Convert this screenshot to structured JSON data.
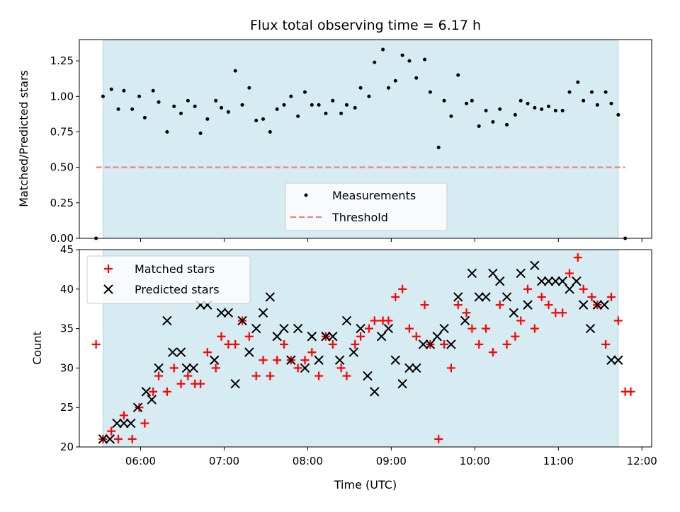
{
  "chart_data": [
    {
      "type": "scatter",
      "title": "Flux total observing time = 6.17 h",
      "ylabel": "Matched/Predicted stars",
      "xlim": [
        "05:16",
        "12:07"
      ],
      "ylim": [
        0,
        1.4
      ],
      "yticks": [
        0.0,
        0.25,
        0.5,
        0.75,
        1.0,
        1.25
      ],
      "ytick_labels": [
        "0.00",
        "0.25",
        "0.50",
        "0.75",
        "1.00",
        "1.25"
      ],
      "shaded_interval": [
        "05:33",
        "11:43"
      ],
      "shade_color": "#add8e6",
      "legend": {
        "location": "lower center",
        "entries": [
          "Measurements",
          "Threshold"
        ]
      },
      "threshold": {
        "name": "Threshold",
        "value": 0.5,
        "x_range": [
          "05:28",
          "11:48"
        ],
        "color": "#f08080",
        "style": "dashed"
      },
      "series": [
        {
          "name": "Measurements",
          "color": "#000000",
          "marker": "point",
          "x": [
            "05:28",
            "05:33",
            "05:39",
            "05:44",
            "05:48",
            "05:54",
            "05:59",
            "06:03",
            "06:09",
            "06:13",
            "06:19",
            "06:24",
            "06:29",
            "06:34",
            "06:39",
            "06:43",
            "06:48",
            "06:54",
            "06:58",
            "07:03",
            "07:08",
            "07:13",
            "07:18",
            "07:23",
            "07:28",
            "07:33",
            "07:38",
            "07:43",
            "07:48",
            "07:53",
            "07:58",
            "08:03",
            "08:08",
            "08:13",
            "08:18",
            "08:24",
            "08:28",
            "08:34",
            "08:38",
            "08:44",
            "08:48",
            "08:54",
            "08:58",
            "09:03",
            "09:08",
            "09:13",
            "09:18",
            "09:24",
            "09:28",
            "09:34",
            "09:38",
            "09:43",
            "09:48",
            "09:54",
            "09:58",
            "10:03",
            "10:08",
            "10:13",
            "10:18",
            "10:23",
            "10:29",
            "10:33",
            "10:38",
            "10:43",
            "10:48",
            "10:53",
            "10:58",
            "11:03",
            "11:08",
            "11:14",
            "11:18",
            "11:24",
            "11:28",
            "11:34",
            "11:38",
            "11:43",
            "11:48"
          ],
          "y": [
            0.0,
            1.0,
            1.05,
            0.91,
            1.04,
            0.91,
            1.0,
            0.85,
            1.04,
            0.96,
            0.75,
            0.93,
            0.88,
            0.97,
            0.93,
            0.74,
            0.84,
            0.97,
            0.92,
            0.89,
            1.18,
            0.94,
            1.06,
            0.83,
            0.84,
            0.75,
            0.91,
            0.94,
            1.0,
            0.86,
            1.03,
            0.94,
            0.94,
            0.88,
            0.97,
            0.88,
            0.94,
            0.92,
            1.06,
            1.0,
            1.24,
            1.33,
            1.06,
            1.11,
            1.29,
            1.25,
            1.13,
            1.26,
            1.03,
            0.64,
            0.97,
            0.86,
            1.15,
            0.95,
            0.97,
            0.79,
            0.9,
            0.82,
            0.91,
            0.8,
            0.87,
            0.97,
            0.95,
            0.92,
            0.91,
            0.93,
            0.9,
            0.9,
            1.03,
            1.1,
            0.97,
            1.03,
            0.94,
            1.03,
            0.95,
            0.87,
            0.0
          ]
        }
      ]
    },
    {
      "type": "scatter",
      "xlabel": "Time (UTC)",
      "ylabel": "Count",
      "xlim": [
        "05:16",
        "12:07"
      ],
      "ylim": [
        20,
        45
      ],
      "xticks": [
        "06:00",
        "07:00",
        "08:00",
        "09:00",
        "10:00",
        "11:00",
        "12:00"
      ],
      "yticks": [
        20,
        25,
        30,
        35,
        40,
        45
      ],
      "shaded_interval": [
        "05:33",
        "11:43"
      ],
      "shade_color": "#add8e6",
      "legend": {
        "location": "upper left",
        "entries": [
          "Matched stars",
          "Predicted stars"
        ]
      },
      "series": [
        {
          "name": "Matched stars",
          "color": "#ff0000",
          "marker": "plus",
          "x": [
            "05:28",
            "05:33",
            "05:39",
            "05:44",
            "05:48",
            "05:54",
            "05:59",
            "06:03",
            "06:09",
            "06:13",
            "06:19",
            "06:24",
            "06:29",
            "06:34",
            "06:39",
            "06:43",
            "06:48",
            "06:54",
            "06:58",
            "07:03",
            "07:08",
            "07:13",
            "07:18",
            "07:23",
            "07:28",
            "07:33",
            "07:38",
            "07:43",
            "07:48",
            "07:53",
            "07:58",
            "08:03",
            "08:08",
            "08:13",
            "08:18",
            "08:24",
            "08:28",
            "08:34",
            "08:38",
            "08:44",
            "08:48",
            "08:54",
            "08:58",
            "09:03",
            "09:08",
            "09:13",
            "09:18",
            "09:24",
            "09:28",
            "09:34",
            "09:38",
            "09:43",
            "09:48",
            "09:54",
            "09:58",
            "10:03",
            "10:08",
            "10:13",
            "10:18",
            "10:23",
            "10:29",
            "10:33",
            "10:38",
            "10:43",
            "10:48",
            "10:53",
            "10:58",
            "11:03",
            "11:08",
            "11:14",
            "11:18",
            "11:24",
            "11:28",
            "11:34",
            "11:38",
            "11:43",
            "11:48"
          ],
          "y": [
            33,
            21,
            22,
            21,
            24,
            21,
            25,
            23,
            27,
            29,
            27,
            30,
            28,
            29,
            28,
            28,
            32,
            30,
            34,
            33,
            33,
            36,
            34,
            29,
            31,
            29,
            31,
            33,
            31,
            30,
            31,
            32,
            29,
            34,
            33,
            30,
            29,
            33,
            34,
            35,
            36,
            36,
            36,
            39,
            40,
            35,
            34,
            38,
            33,
            21,
            33,
            30,
            38,
            37,
            35,
            33,
            35,
            32,
            38,
            33,
            34,
            36,
            40,
            35,
            39,
            38,
            37,
            37,
            42,
            44,
            40,
            39,
            38,
            33,
            39,
            36,
            27
          ],
          "extra_points": [
            {
              "x": "11:52",
              "y": 27
            }
          ]
        },
        {
          "name": "Predicted stars",
          "color": "#000000",
          "marker": "x",
          "x": [
            "05:33",
            "05:38",
            "05:43",
            "05:48",
            "05:53",
            "05:58",
            "06:04",
            "06:08",
            "06:13",
            "06:19",
            "06:23",
            "06:29",
            "06:33",
            "06:38",
            "06:43",
            "06:48",
            "06:53",
            "06:58",
            "07:03",
            "07:08",
            "07:13",
            "07:18",
            "07:23",
            "07:28",
            "07:33",
            "07:38",
            "07:43",
            "07:48",
            "07:53",
            "07:58",
            "08:03",
            "08:08",
            "08:13",
            "08:18",
            "08:23",
            "08:28",
            "08:33",
            "08:38",
            "08:43",
            "08:48",
            "08:53",
            "08:58",
            "09:03",
            "09:08",
            "09:13",
            "09:18",
            "09:23",
            "09:28",
            "09:33",
            "09:38",
            "09:43",
            "09:48",
            "09:53",
            "09:58",
            "10:03",
            "10:08",
            "10:13",
            "10:18",
            "10:23",
            "10:28",
            "10:33",
            "10:38",
            "10:43",
            "10:48",
            "10:53",
            "10:58",
            "11:03",
            "11:08",
            "11:13",
            "11:18",
            "11:23",
            "11:28",
            "11:33",
            "11:38",
            "11:43"
          ],
          "y": [
            21,
            21,
            23,
            23,
            23,
            25,
            27,
            26,
            30,
            36,
            32,
            32,
            30,
            30,
            38,
            38,
            31,
            37,
            37,
            28,
            36,
            32,
            35,
            37,
            39,
            34,
            35,
            31,
            35,
            30,
            34,
            31,
            34,
            34,
            31,
            36,
            32,
            35,
            29,
            27,
            34,
            35,
            31,
            28,
            30,
            30,
            33,
            33,
            34,
            35,
            33,
            39,
            36,
            42,
            39,
            39,
            42,
            41,
            39,
            37,
            42,
            38,
            43,
            41,
            41,
            41,
            41,
            40,
            41,
            38,
            35,
            38,
            38,
            31,
            31
          ]
        }
      ]
    }
  ]
}
